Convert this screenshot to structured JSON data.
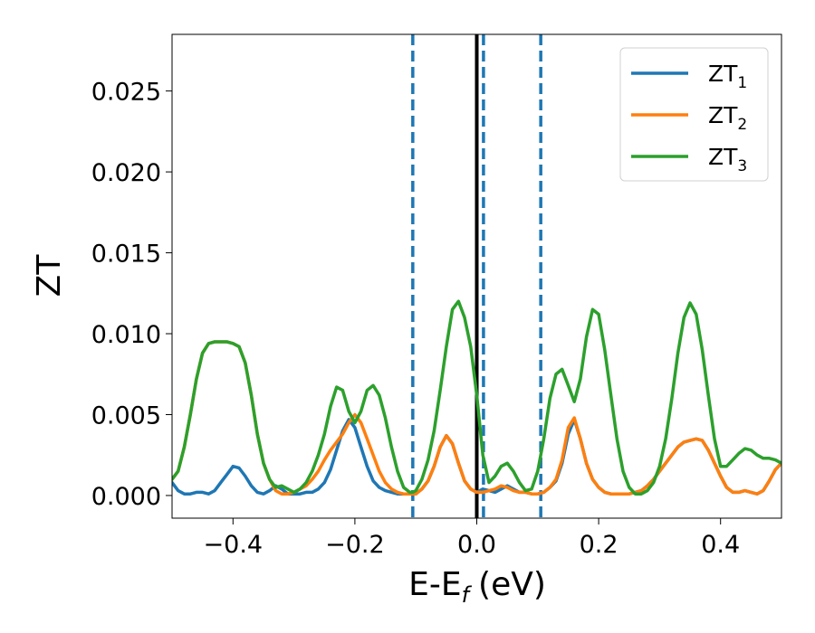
{
  "chart_data": {
    "type": "line",
    "xlabel_main": "E-E",
    "xlabel_sub": "f",
    "xlabel_unit": "(eV)",
    "ylabel": "ZT",
    "xlim": [
      -0.5,
      0.5
    ],
    "ylim": [
      -0.0014,
      0.0285
    ],
    "xticks": [
      -0.4,
      -0.2,
      0.0,
      0.2,
      0.4
    ],
    "xtick_labels": [
      "−0.4",
      "−0.2",
      "0.0",
      "0.2",
      "0.4"
    ],
    "yticks": [
      0.0,
      0.005,
      0.01,
      0.015,
      0.02,
      0.025
    ],
    "ytick_labels": [
      "0.000",
      "0.005",
      "0.010",
      "0.015",
      "0.020",
      "0.025"
    ],
    "grid": false,
    "legend_position": "top-right",
    "vlines": [
      {
        "x": -0.105,
        "style": "dashed",
        "color": "#1f77b4"
      },
      {
        "x": 0.0,
        "style": "solid",
        "color": "#000000"
      },
      {
        "x": 0.011,
        "style": "dashed",
        "color": "#1f77b4"
      },
      {
        "x": 0.105,
        "style": "dashed",
        "color": "#1f77b4"
      }
    ],
    "series": [
      {
        "name": "ZT",
        "sub": "1",
        "color": "#1f77b4",
        "x": [
          -0.5,
          -0.49,
          -0.48,
          -0.47,
          -0.46,
          -0.45,
          -0.44,
          -0.43,
          -0.42,
          -0.41,
          -0.4,
          -0.39,
          -0.38,
          -0.37,
          -0.36,
          -0.35,
          -0.34,
          -0.33,
          -0.32,
          -0.31,
          -0.3,
          -0.29,
          -0.28,
          -0.27,
          -0.26,
          -0.25,
          -0.24,
          -0.23,
          -0.22,
          -0.21,
          -0.2,
          -0.19,
          -0.18,
          -0.17,
          -0.16,
          -0.15,
          -0.14,
          -0.13,
          -0.12,
          -0.11,
          -0.105,
          -0.1,
          -0.09,
          -0.08,
          -0.07,
          -0.06,
          -0.05,
          -0.04,
          -0.03,
          -0.02,
          -0.01,
          0.0,
          0.01,
          0.02,
          0.03,
          0.04,
          0.05,
          0.06,
          0.07,
          0.08,
          0.09,
          0.1,
          0.11,
          0.12,
          0.13,
          0.14,
          0.15,
          0.16,
          0.17,
          0.18,
          0.19,
          0.2,
          0.21,
          0.22,
          0.23,
          0.24,
          0.25,
          0.26,
          0.27,
          0.28,
          0.29,
          0.3,
          0.31,
          0.32,
          0.33,
          0.34,
          0.35,
          0.36,
          0.37,
          0.38,
          0.39,
          0.4,
          0.41,
          0.42,
          0.43,
          0.44,
          0.45,
          0.46,
          0.47,
          0.48,
          0.49,
          0.5
        ],
        "y": [
          0.0008,
          0.0003,
          0.0001,
          0.0001,
          0.0002,
          0.0002,
          0.0001,
          0.0003,
          0.0008,
          0.0013,
          0.0018,
          0.0017,
          0.0012,
          0.0006,
          0.0002,
          0.0001,
          0.0003,
          0.0006,
          0.0004,
          0.0001,
          0.0001,
          0.0001,
          0.0002,
          0.0002,
          0.0004,
          0.0008,
          0.0016,
          0.0028,
          0.004,
          0.0047,
          0.0042,
          0.003,
          0.0018,
          0.0009,
          0.0005,
          0.0003,
          0.0002,
          0.0001,
          0.0001,
          0.0001,
          0.0001,
          0.0001,
          0.0004,
          0.0009,
          0.0018,
          0.003,
          0.0037,
          0.0032,
          0.002,
          0.0009,
          0.0004,
          0.0002,
          0.0004,
          0.0003,
          0.0002,
          0.0004,
          0.0006,
          0.0004,
          0.0002,
          0.0002,
          0.0001,
          0.0001,
          0.0002,
          0.0005,
          0.0009,
          0.002,
          0.0038,
          0.0047,
          0.0035,
          0.002,
          0.001,
          0.0005,
          0.0002,
          0.0001,
          0.0001,
          0.0001,
          0.0001,
          0.0002,
          0.0003,
          0.0006,
          0.001,
          0.0015,
          0.002,
          0.0025,
          0.003,
          0.0033,
          0.0034,
          0.0035,
          0.0034,
          0.0028,
          0.002,
          0.0012,
          0.0005,
          0.0002,
          0.0002,
          0.0003,
          0.0002,
          0.0001,
          0.0003,
          0.0009,
          0.0016,
          0.002
        ]
      },
      {
        "name": "ZT",
        "sub": "2",
        "color": "#ff7f0e",
        "x": [
          -0.5,
          -0.49,
          -0.48,
          -0.47,
          -0.46,
          -0.45,
          -0.44,
          -0.43,
          -0.42,
          -0.41,
          -0.4,
          -0.39,
          -0.38,
          -0.37,
          -0.36,
          -0.35,
          -0.34,
          -0.33,
          -0.32,
          -0.31,
          -0.3,
          -0.29,
          -0.28,
          -0.27,
          -0.26,
          -0.25,
          -0.24,
          -0.23,
          -0.22,
          -0.21,
          -0.2,
          -0.19,
          -0.18,
          -0.17,
          -0.16,
          -0.15,
          -0.14,
          -0.13,
          -0.12,
          -0.11,
          -0.105,
          -0.1,
          -0.09,
          -0.08,
          -0.07,
          -0.06,
          -0.05,
          -0.04,
          -0.03,
          -0.02,
          -0.01,
          0.0,
          0.01,
          0.02,
          0.03,
          0.04,
          0.05,
          0.06,
          0.07,
          0.08,
          0.09,
          0.1,
          0.11,
          0.12,
          0.13,
          0.14,
          0.15,
          0.16,
          0.17,
          0.18,
          0.19,
          0.2,
          0.21,
          0.22,
          0.23,
          0.24,
          0.25,
          0.26,
          0.27,
          0.28,
          0.29,
          0.3,
          0.31,
          0.32,
          0.33,
          0.34,
          0.35,
          0.36,
          0.37,
          0.38,
          0.39,
          0.4,
          0.41,
          0.42,
          0.43,
          0.44,
          0.45,
          0.46,
          0.47,
          0.48,
          0.49,
          0.5
        ],
        "y": [
          0.001,
          0.0015,
          0.003,
          0.005,
          0.0072,
          0.0088,
          0.0094,
          0.0095,
          0.0095,
          0.0095,
          0.0094,
          0.0092,
          0.0082,
          0.0062,
          0.0038,
          0.002,
          0.001,
          0.0003,
          0.0001,
          0.0001,
          0.0002,
          0.0004,
          0.0006,
          0.001,
          0.0015,
          0.0022,
          0.0028,
          0.0033,
          0.0038,
          0.0045,
          0.005,
          0.0045,
          0.0035,
          0.0025,
          0.0015,
          0.0008,
          0.0004,
          0.0002,
          0.0001,
          0.0001,
          0.0001,
          0.0001,
          0.0004,
          0.0009,
          0.0018,
          0.003,
          0.0037,
          0.0032,
          0.002,
          0.0009,
          0.0004,
          0.0002,
          0.0002,
          0.0003,
          0.0004,
          0.0006,
          0.0005,
          0.0003,
          0.0002,
          0.0002,
          0.0001,
          0.0001,
          0.0002,
          0.0005,
          0.001,
          0.0022,
          0.0042,
          0.0048,
          0.0035,
          0.002,
          0.001,
          0.0005,
          0.0002,
          0.0001,
          0.0001,
          0.0001,
          0.0001,
          0.0002,
          0.0003,
          0.0006,
          0.001,
          0.0015,
          0.002,
          0.0025,
          0.003,
          0.0033,
          0.0034,
          0.0035,
          0.0034,
          0.0028,
          0.002,
          0.0012,
          0.0005,
          0.0002,
          0.0002,
          0.0003,
          0.0002,
          0.0001,
          0.0003,
          0.0009,
          0.0016,
          0.002
        ]
      },
      {
        "name": "ZT",
        "sub": "3",
        "color": "#2ca02c",
        "x": [
          -0.5,
          -0.49,
          -0.48,
          -0.47,
          -0.46,
          -0.45,
          -0.44,
          -0.43,
          -0.42,
          -0.41,
          -0.4,
          -0.39,
          -0.38,
          -0.37,
          -0.36,
          -0.35,
          -0.34,
          -0.33,
          -0.32,
          -0.31,
          -0.3,
          -0.29,
          -0.28,
          -0.27,
          -0.26,
          -0.25,
          -0.24,
          -0.23,
          -0.22,
          -0.21,
          -0.2,
          -0.19,
          -0.18,
          -0.17,
          -0.16,
          -0.15,
          -0.14,
          -0.13,
          -0.12,
          -0.11,
          -0.105,
          -0.1,
          -0.09,
          -0.08,
          -0.07,
          -0.06,
          -0.05,
          -0.04,
          -0.03,
          -0.02,
          -0.01,
          0.0,
          0.01,
          0.02,
          0.03,
          0.04,
          0.05,
          0.06,
          0.07,
          0.08,
          0.09,
          0.1,
          0.11,
          0.12,
          0.13,
          0.14,
          0.15,
          0.16,
          0.17,
          0.18,
          0.19,
          0.2,
          0.21,
          0.22,
          0.23,
          0.24,
          0.25,
          0.26,
          0.27,
          0.28,
          0.29,
          0.3,
          0.31,
          0.32,
          0.33,
          0.34,
          0.35,
          0.36,
          0.37,
          0.38,
          0.39,
          0.4,
          0.41,
          0.42,
          0.43,
          0.44,
          0.45,
          0.46,
          0.47,
          0.48,
          0.49,
          0.5
        ],
        "y": [
          0.001,
          0.0015,
          0.003,
          0.005,
          0.0072,
          0.0088,
          0.0094,
          0.0095,
          0.0095,
          0.0095,
          0.0094,
          0.0092,
          0.0082,
          0.0062,
          0.0038,
          0.002,
          0.001,
          0.0005,
          0.0006,
          0.0004,
          0.0002,
          0.0004,
          0.0008,
          0.0015,
          0.0025,
          0.0038,
          0.0055,
          0.0067,
          0.0065,
          0.0052,
          0.0045,
          0.0052,
          0.0065,
          0.0068,
          0.0062,
          0.0048,
          0.003,
          0.0015,
          0.0005,
          0.0002,
          0.0002,
          0.0003,
          0.001,
          0.0022,
          0.004,
          0.0065,
          0.0092,
          0.0115,
          0.012,
          0.011,
          0.0092,
          0.0062,
          0.0025,
          0.0008,
          0.0012,
          0.0018,
          0.002,
          0.0015,
          0.0008,
          0.0003,
          0.0004,
          0.0015,
          0.0035,
          0.006,
          0.0075,
          0.0078,
          0.0068,
          0.0058,
          0.0072,
          0.0098,
          0.0115,
          0.0112,
          0.009,
          0.0062,
          0.0035,
          0.0015,
          0.0005,
          0.0001,
          0.0001,
          0.0003,
          0.0008,
          0.0018,
          0.0035,
          0.006,
          0.0088,
          0.011,
          0.0119,
          0.0112,
          0.009,
          0.0062,
          0.0035,
          0.0018,
          0.0018,
          0.0022,
          0.0026,
          0.0029,
          0.0028,
          0.0025,
          0.0023,
          0.0023,
          0.0022,
          0.002
        ]
      }
    ]
  }
}
